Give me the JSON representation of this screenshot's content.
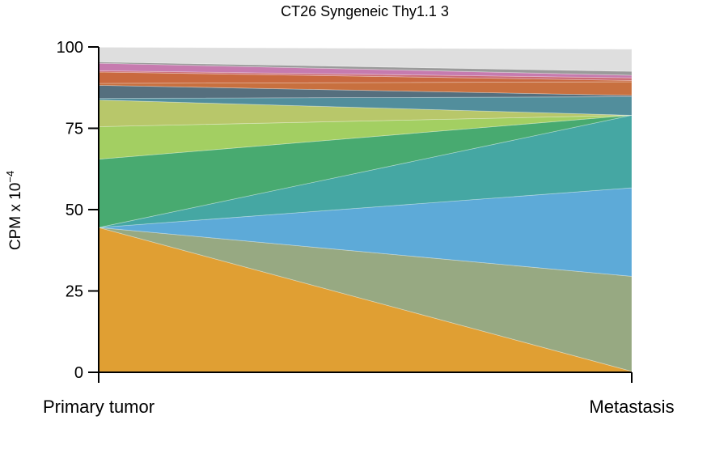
{
  "chart_data": {
    "type": "area",
    "title": "CT26 Syngeneic Thy1.1 3",
    "xlabel": "",
    "ylabel": "CPM x 10",
    "ylabel_exponent": "−4",
    "categories": [
      "Primary tumor",
      "Metastasis"
    ],
    "ylim": [
      0,
      100
    ],
    "yticks": [
      "0",
      "25",
      "50",
      "75",
      "100"
    ],
    "ytick_values": [
      0,
      25,
      50,
      75,
      100
    ],
    "grid": false,
    "legend": "none",
    "series": [
      {
        "color": "#E09F33",
        "values": [
          44.5,
          0.3
        ]
      },
      {
        "color": "#97A982",
        "values": [
          0,
          29.2
        ]
      },
      {
        "color": "#5DAAD8",
        "values": [
          0,
          27.2
        ]
      },
      {
        "color": "#45A7A3",
        "values": [
          0,
          22.3
        ]
      },
      {
        "color": "#48AA70",
        "values": [
          21.0,
          0
        ]
      },
      {
        "color": "#A3CF62",
        "values": [
          10.0,
          0
        ]
      },
      {
        "color": "#B8C76A",
        "values": [
          8.2,
          0
        ]
      },
      {
        "color": "#528E9C",
        "values": [
          0.5,
          5.7
        ]
      },
      {
        "color": "#556F7E",
        "values": [
          4.0,
          0.4
        ]
      },
      {
        "color": "#C8703F",
        "values": [
          0.6,
          4.2
        ]
      },
      {
        "color": "#C9693F",
        "values": [
          3.5,
          0.4
        ]
      },
      {
        "color": "#CB6A75",
        "values": [
          0.4,
          0.8
        ]
      },
      {
        "color": "#C67BAF",
        "values": [
          2.3,
          0.8
        ]
      },
      {
        "color": "#9A9A9A",
        "values": [
          0.4,
          1.2
        ]
      },
      {
        "color": "#DEDEDE",
        "values": [
          4.5,
          6.8
        ]
      }
    ]
  }
}
